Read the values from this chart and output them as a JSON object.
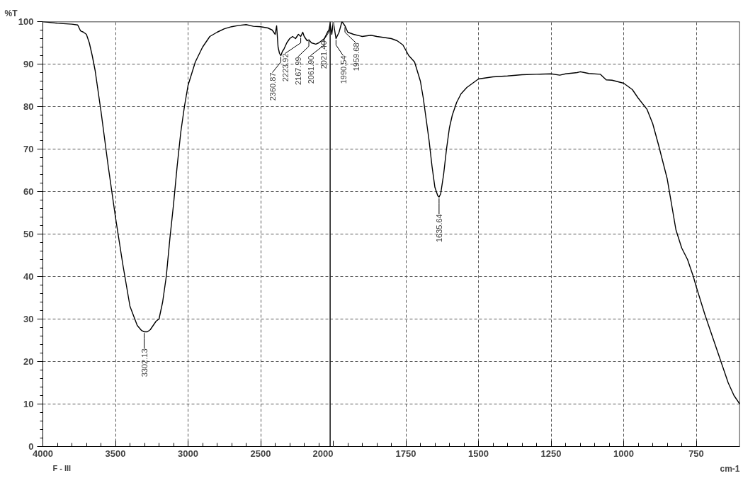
{
  "chart_data": [
    {
      "type": "line",
      "ylabel": "%T",
      "xlim": [
        4000,
        2000
      ],
      "xticks": [
        4000,
        3500,
        3000,
        2500,
        2000
      ],
      "ylim": [
        0,
        100
      ],
      "yticks": [
        0,
        10,
        20,
        30,
        40,
        50,
        60,
        70,
        80,
        90,
        100
      ],
      "grid": true,
      "series": [
        {
          "color": "#000000",
          "x": [
            4000,
            3900,
            3800,
            3760,
            3740,
            3720,
            3700,
            3680,
            3660,
            3640,
            3600,
            3550,
            3500,
            3450,
            3400,
            3350,
            3320,
            3302.13,
            3280,
            3260,
            3240,
            3220,
            3200,
            3175,
            3150,
            3125,
            3100,
            3075,
            3050,
            3025,
            3000,
            2950,
            2900,
            2850,
            2800,
            2750,
            2700,
            2650,
            2600,
            2550,
            2500,
            2450,
            2420,
            2400,
            2390,
            2380,
            2370,
            2360.87,
            2350,
            2340,
            2320,
            2300,
            2280,
            2260,
            2240,
            2223.92,
            2210,
            2200,
            2180,
            2167.99,
            2150,
            2120,
            2100,
            2080,
            2061.9,
            2050,
            2040,
            2030,
            2021.4,
            2010,
            2000
          ],
          "values": [
            100,
            99.6,
            99.4,
            99.2,
            97.8,
            97.5,
            97,
            95,
            92,
            88.5,
            79,
            66,
            54,
            43,
            33,
            28.5,
            27.3,
            27,
            27,
            27.5,
            28.5,
            29.5,
            30,
            34,
            40,
            49,
            57,
            66,
            74,
            80,
            85,
            90.5,
            94,
            96.5,
            97.5,
            98.3,
            98.8,
            99.1,
            99.3,
            98.9,
            98.8,
            98.5,
            98,
            97,
            99,
            94,
            92.5,
            92,
            93,
            93.5,
            95,
            96,
            96.5,
            96,
            97,
            96.5,
            97.5,
            96.5,
            95.5,
            95.7,
            95,
            94.7,
            95,
            95.5,
            96,
            96.8,
            97.5,
            98,
            99.5,
            97,
            100
          ]
        }
      ],
      "ref_lines": [
        {
          "axis": "x",
          "value": 2021.4
        }
      ],
      "annotations": [
        {
          "text": "3302.13",
          "x": 3302.13,
          "y": 27
        },
        {
          "text": "2360.87",
          "x": 2360.87,
          "y": 92
        },
        {
          "text": "2223.92",
          "x": 2223.92,
          "y": 96.5
        },
        {
          "text": "2167.99",
          "x": 2167.99,
          "y": 95.7
        },
        {
          "text": "2061.90",
          "x": 2061.9,
          "y": 96
        },
        {
          "text": "2021.40",
          "x": 2021.4,
          "y": 99.5
        },
        "F - III"
      ]
    },
    {
      "type": "line",
      "xlabel": "cm-1",
      "xlim": [
        2000,
        600
      ],
      "xticks": [
        {
          "value": 2000,
          "label": null
        },
        1750,
        1500,
        1250,
        1000,
        750
      ],
      "ylim": [
        0,
        100
      ],
      "yticks": [
        0,
        10,
        20,
        30,
        40,
        50,
        60,
        70,
        80,
        90,
        100
      ],
      "grid": true,
      "tick_labels": "x",
      "series": [
        {
          "color": "#000000",
          "x": [
            2000,
            1990.54,
            1980,
            1970,
            1959.68,
            1950,
            1930,
            1900,
            1870,
            1850,
            1820,
            1800,
            1780,
            1760,
            1740,
            1720,
            1700,
            1690,
            1680,
            1670,
            1660,
            1650,
            1640,
            1635.64,
            1630,
            1620,
            1610,
            1600,
            1590,
            1575,
            1560,
            1540,
            1520,
            1500,
            1450,
            1400,
            1350,
            1300,
            1250,
            1220,
            1200,
            1160,
            1150,
            1120,
            1080,
            1060,
            1040,
            1000,
            970,
            950,
            920,
            900,
            880,
            850,
            820,
            800,
            780,
            760,
            750,
            720,
            700,
            680,
            660,
            640,
            620,
            600
          ],
          "values": [
            100,
            96,
            97.5,
            100,
            99,
            97.5,
            97,
            96.5,
            96.8,
            96.5,
            96.2,
            96,
            95.5,
            94.5,
            92,
            90.5,
            86,
            82,
            77,
            72,
            66,
            61,
            59,
            58.7,
            59.5,
            64,
            70,
            75,
            78,
            81,
            83,
            84.5,
            85.5,
            86.5,
            87,
            87.2,
            87.5,
            87.6,
            87.7,
            87.4,
            87.7,
            88,
            88.2,
            87.8,
            87.6,
            86.3,
            86.2,
            85.5,
            84,
            82,
            79.4,
            76,
            71,
            63,
            51,
            46.7,
            44,
            40,
            37.6,
            31,
            27,
            23,
            19,
            15,
            12,
            10
          ]
        }
      ],
      "annotations": [
        {
          "text": "1990.54",
          "x": 1990.54,
          "y": 96
        },
        {
          "text": "1959.68",
          "x": 1959.68,
          "y": 99
        },
        {
          "text": "1635.64",
          "x": 1635.64,
          "y": 58.7
        }
      ]
    }
  ]
}
